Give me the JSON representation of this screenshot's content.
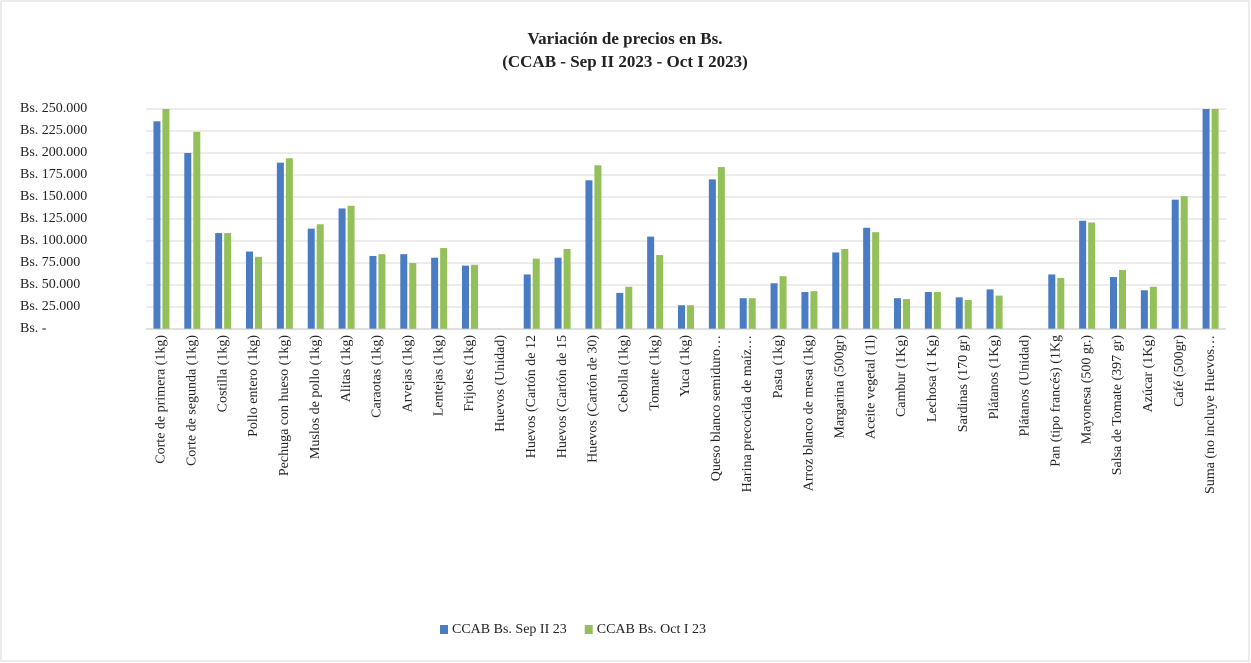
{
  "chart_data": {
    "type": "bar",
    "title": "Variación de precios en Bs.",
    "subtitle": "(CCAB - Sep II 2023 - Oct I 2023)",
    "categories": [
      "Corte de primera (1kg)",
      "Corte de segunda (1kg)",
      "Costilla (1kg)",
      "Pollo entero (1kg)",
      "Pechuga con hueso (1kg)",
      "Muslos de pollo (1kg)",
      "Alitas (1kg)",
      "Caraotas (1kg)",
      "Arvejas (1kg)",
      "Lentejas (1kg)",
      "Frijoles (1kg)",
      "Huevos (Unidad)",
      "Huevos (Cartón de 12",
      "Huevos (Cartón de 15",
      "Huevos (Cartón de 30)",
      "Cebolla (1kg)",
      "Tomate (1kg)",
      "Yuca (1kg)",
      "Queso blanco semiduro…",
      "Harina precocida de maíz…",
      "Pasta (1kg)",
      "Arroz blanco de mesa (1kg)",
      "Margarina (500gr)",
      "Aceite vegetal (1l)",
      "Cambur (1Kg)",
      "Lechosa (1 Kg)",
      "Sardinas (170 gr)",
      "Plátanos (1Kg)",
      "Plátanos (Unidad)",
      "Pan (tipo francés) (1Kg",
      "Mayonesa (500 gr.)",
      "Salsa de Tomate (397 gr)",
      "Azúcar (1Kg)",
      "Café (500gr)",
      "Suma (no incluye Huevos…"
    ],
    "series": [
      {
        "name": "CCAB Bs. Sep II 23",
        "color": "#4a7cc4",
        "values": [
          236000,
          200000,
          109000,
          88000,
          189000,
          114000,
          137000,
          83000,
          85000,
          81000,
          72000,
          0,
          62000,
          81000,
          169000,
          41000,
          105000,
          27000,
          170000,
          35000,
          52000,
          42000,
          87000,
          115000,
          35000,
          42000,
          36000,
          45000,
          0,
          62000,
          123000,
          59000,
          44000,
          147000,
          250000
        ]
      },
      {
        "name": "CCAB Bs. Oct I 23",
        "color": "#94c05a",
        "values": [
          250000,
          224000,
          109000,
          82000,
          194000,
          119000,
          140000,
          85000,
          75000,
          92000,
          73000,
          0,
          80000,
          91000,
          186000,
          48000,
          84000,
          27000,
          184000,
          35000,
          60000,
          43000,
          91000,
          110000,
          34000,
          42000,
          33000,
          38000,
          0,
          58000,
          121000,
          67000,
          48000,
          151000,
          250000
        ]
      }
    ],
    "ylim": [
      0,
      250000
    ],
    "yticks": [
      {
        "value": 0,
        "label": "Bs. -"
      },
      {
        "value": 25000,
        "label": "Bs. 25.000"
      },
      {
        "value": 50000,
        "label": "Bs. 50.000"
      },
      {
        "value": 75000,
        "label": "Bs. 75.000"
      },
      {
        "value": 100000,
        "label": "Bs. 100.000"
      },
      {
        "value": 125000,
        "label": "Bs. 125.000"
      },
      {
        "value": 150000,
        "label": "Bs. 150.000"
      },
      {
        "value": 175000,
        "label": "Bs. 175.000"
      },
      {
        "value": 200000,
        "label": "Bs. 200.000"
      },
      {
        "value": 225000,
        "label": "Bs. 225.000"
      },
      {
        "value": 250000,
        "label": "Bs. 250.000"
      }
    ],
    "grid": true,
    "legend": "bottom"
  }
}
